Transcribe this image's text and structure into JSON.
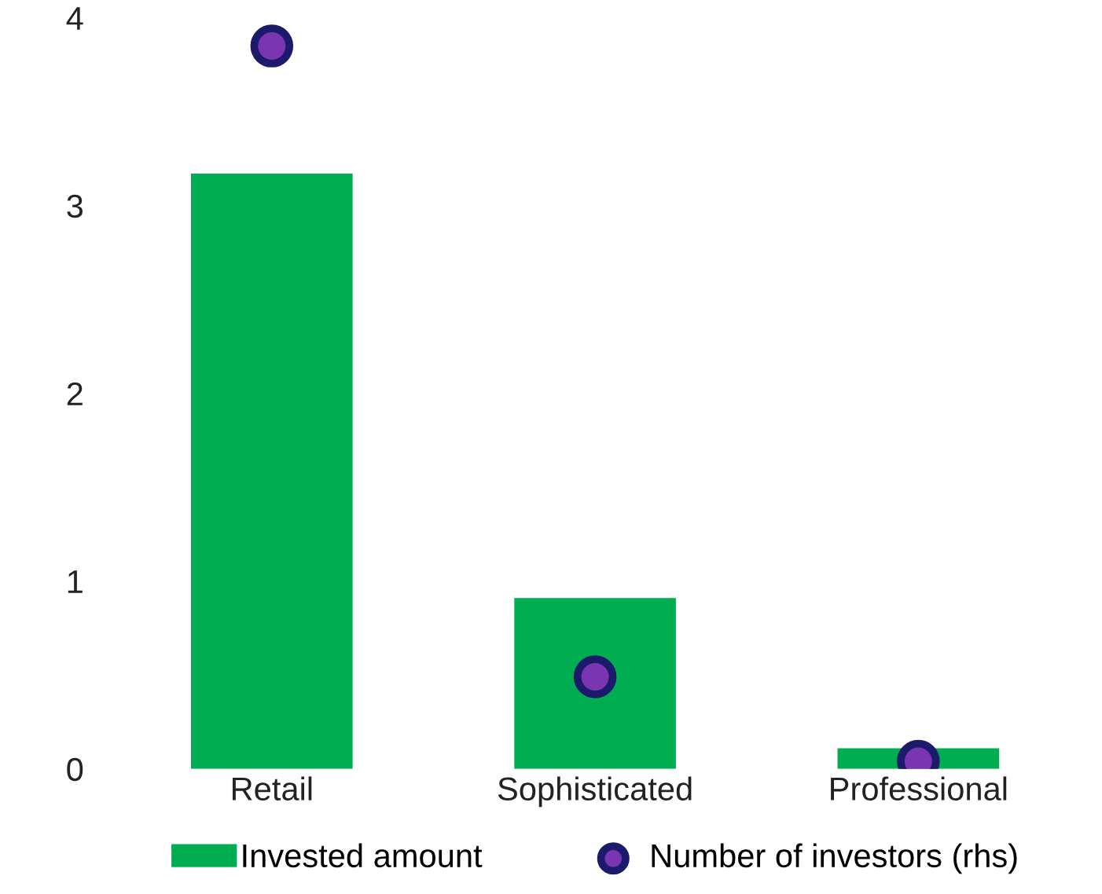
{
  "chart_data": {
    "type": "bar",
    "categories": [
      "Retail",
      "Sophisticated",
      "Professional"
    ],
    "series": [
      {
        "name": "Invested amount",
        "color": "#00ad50",
        "values": [
          3.17,
          0.91,
          0.11
        ]
      },
      {
        "name": "Number of investors (rhs)",
        "type": "scatter",
        "color": "#7a35b0",
        "values": [
          3.85,
          0.49,
          0.04
        ]
      }
    ],
    "ylim": [
      0,
      4
    ],
    "yticks": [
      0,
      1,
      2,
      3,
      4
    ],
    "grid": false,
    "legend": "bottom",
    "marker": "circle"
  }
}
